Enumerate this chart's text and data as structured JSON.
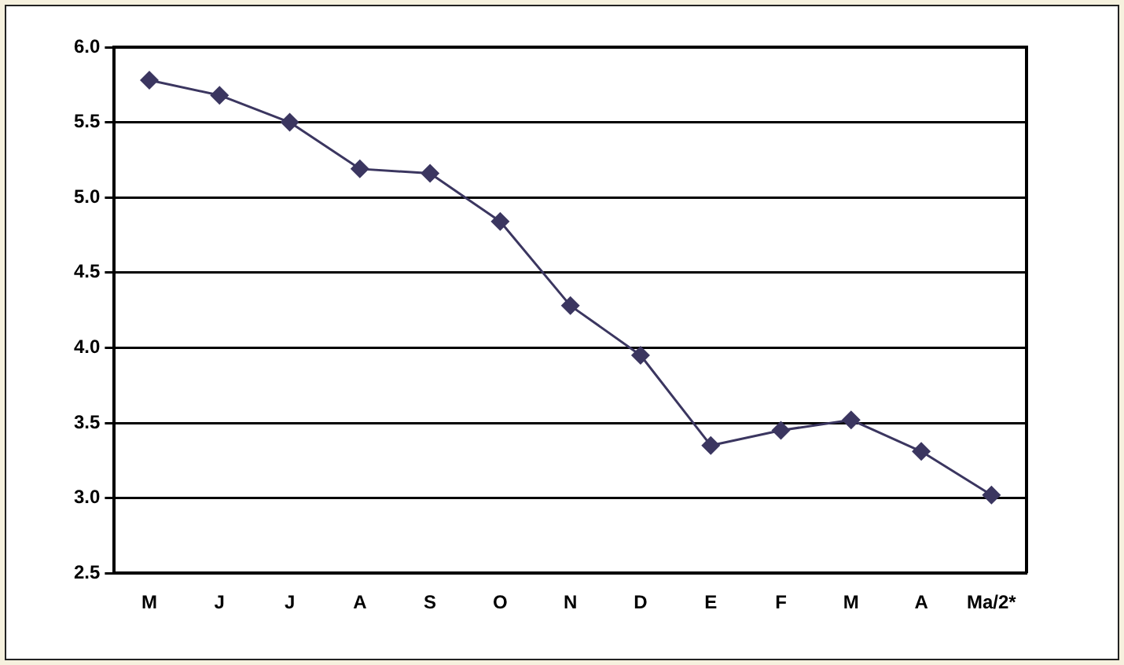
{
  "chart_data": {
    "type": "line",
    "categories": [
      "M",
      "J",
      "J",
      "A",
      "S",
      "O",
      "N",
      "D",
      "E",
      "F",
      "M",
      "A",
      "Ma/2*"
    ],
    "series": [
      {
        "color": "#3b3660",
        "values": [
          5.78,
          5.68,
          5.5,
          5.19,
          5.16,
          4.84,
          4.28,
          3.95,
          3.35,
          3.45,
          3.52,
          3.31,
          3.02
        ]
      }
    ],
    "ylim": [
      2.5,
      6.0
    ],
    "yticks": [
      {
        "value": 2.5,
        "label": "2.5"
      },
      {
        "value": 3,
        "label": "3.0"
      },
      {
        "value": 3.5,
        "label": "3.5"
      },
      {
        "value": 4,
        "label": "4.0"
      },
      {
        "value": 4.5,
        "label": "4.5"
      },
      {
        "value": 5,
        "label": "5.0"
      },
      {
        "value": 5.5,
        "label": "5.5"
      },
      {
        "value": 6,
        "label": "6.0"
      }
    ],
    "grid": "y",
    "legend": false,
    "marker": "diamond",
    "line_style": "solid"
  }
}
